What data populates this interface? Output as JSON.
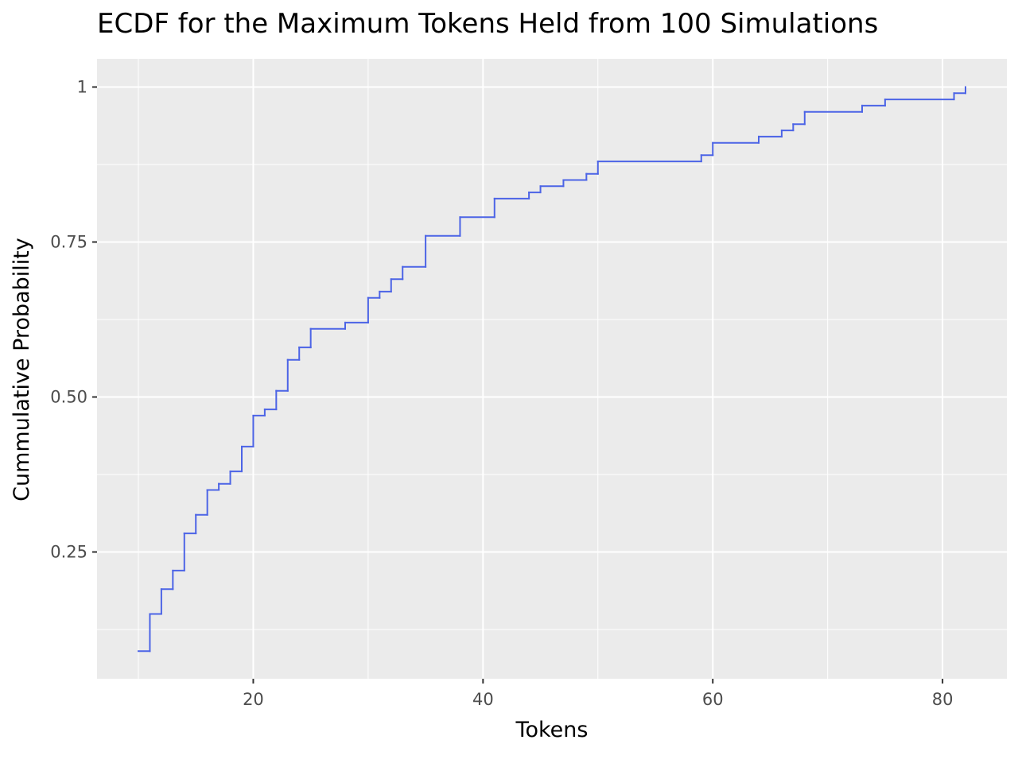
{
  "chart_data": {
    "type": "line",
    "subtype": "ecdf-step",
    "title": "ECDF for the Maximum Tokens Held from 100 Simulations",
    "xlabel": "Tokens",
    "ylabel": "Cummulative Probability",
    "xlim": [
      6.4,
      85.6
    ],
    "ylim": [
      0.0455,
      1.0455
    ],
    "x_ticks": [
      20,
      40,
      60,
      80
    ],
    "x_tick_labels": [
      "20",
      "40",
      "60",
      "80"
    ],
    "y_ticks": [
      0.25,
      0.5,
      0.75,
      1.0
    ],
    "y_tick_labels": [
      "0.25",
      "0.50",
      "0.75",
      "1"
    ],
    "x_minor_ticks": [
      10,
      30,
      50,
      70
    ],
    "y_minor_ticks": [
      0.125,
      0.375,
      0.625,
      0.875
    ],
    "grid": true,
    "legend": "none",
    "colors": {
      "panel_background": "#ebebeb",
      "grid": "#ffffff",
      "line": "#4c64e6",
      "tick_text": "#4d4d4d",
      "tick_mark": "#333333"
    },
    "series": [
      {
        "x": [
          10,
          11,
          12,
          13,
          14,
          15,
          16,
          17,
          18,
          19,
          20,
          21,
          22,
          23,
          24,
          25,
          28,
          30,
          31,
          32,
          33,
          35,
          38,
          41,
          44,
          45,
          47,
          49,
          50,
          59,
          60,
          64,
          66,
          67,
          68,
          73,
          75,
          81,
          82
        ],
        "y": [
          0.09,
          0.15,
          0.19,
          0.22,
          0.28,
          0.31,
          0.35,
          0.36,
          0.38,
          0.42,
          0.47,
          0.48,
          0.51,
          0.56,
          0.58,
          0.61,
          0.62,
          0.66,
          0.67,
          0.69,
          0.71,
          0.76,
          0.79,
          0.82,
          0.83,
          0.84,
          0.85,
          0.86,
          0.88,
          0.89,
          0.91,
          0.92,
          0.93,
          0.94,
          0.96,
          0.97,
          0.98,
          0.99,
          1.0
        ]
      }
    ]
  }
}
